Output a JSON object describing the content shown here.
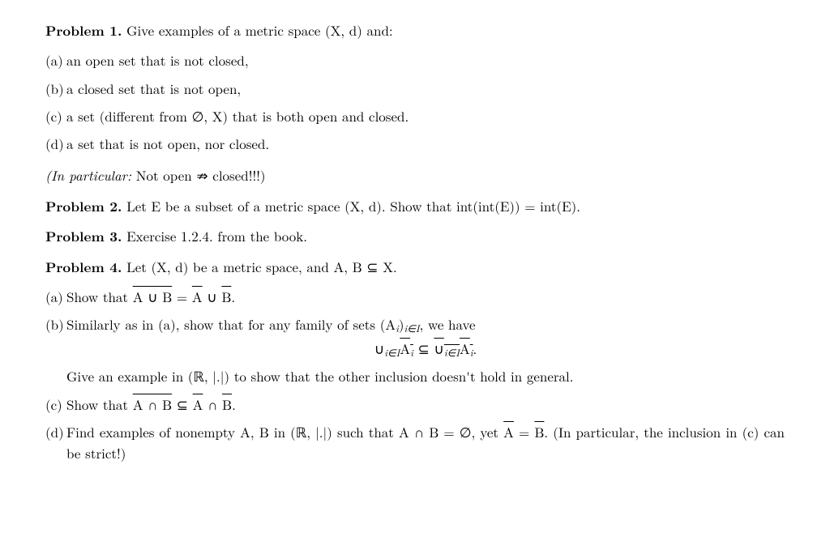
{
  "p1": {
    "label": "Problem 1.",
    "intro": "Give examples of a metric space (X, d) and:",
    "items": {
      "a": {
        "m": "(a)",
        "t": "an open set that is not closed,"
      },
      "b": {
        "m": "(b)",
        "t": "a closed set that is not open,"
      },
      "c": {
        "m": "(c)",
        "t": "a set (different from ∅, X) that is both open and closed."
      },
      "d": {
        "m": "(d)",
        "t": "a set that is not open, nor closed."
      }
    },
    "note_prefix": "(In particular:",
    "note_rest": " Not open ⇏ closed!!!)"
  },
  "p2": {
    "label": "Problem 2.",
    "text": "Let E be a subset of a metric space (X, d). Show that int(int(E)) = int(E)."
  },
  "p3": {
    "label": "Problem 3.",
    "text": "Exercise 1.2.4. from the book."
  },
  "p4": {
    "label": "Problem 4.",
    "intro": "Let (X, d) be a metric space, and A, B ⊆ X.",
    "a": {
      "m": "(a)",
      "pre": "Show that ",
      "lhs": "A ∪ B",
      "eq": " = ",
      "r1": "A",
      "cup": " ∪ ",
      "r2": "B",
      "end": "."
    },
    "b": {
      "m": "(b)",
      "lead_pre": "Similarly as in (a), show that for any family of sets (A",
      "lead_sub1": "i",
      "lead_mid": ")",
      "lead_sub2": "i∈I",
      "lead_post": ", we have",
      "disp": {
        "u1": "∪",
        "s1": "i∈I",
        "a_over": "A",
        "a_sub": "i",
        "sub_rel": " ⊆ ",
        "u2": "∪",
        "s2": "i∈I",
        "a2": "A",
        "a2_sub": "i",
        "end": "."
      },
      "tail": "Give an example in (ℝ, |.|) to show that the other inclusion doesn't hold in general."
    },
    "c": {
      "m": "(c)",
      "pre": "Show that ",
      "lhs": "A ∩ B",
      "rel": " ⊆ ",
      "r1": "A",
      "cap": " ∩ ",
      "r2": "B",
      "end": "."
    },
    "d": {
      "m": "(d)",
      "pre": "Find examples of nonempty A, B in (ℝ, |.|) such that A ∩ B = ∅, yet ",
      "abar": "A",
      "eq": " = ",
      "bbar": "B",
      "post": ". (In particular, the inclusion in (c) can be strict!)"
    }
  }
}
